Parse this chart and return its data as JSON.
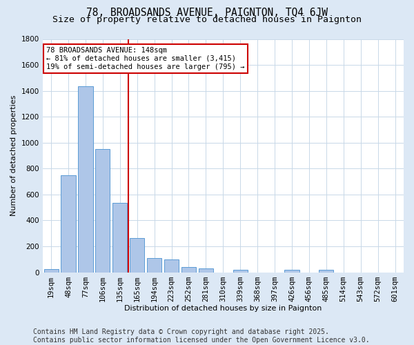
{
  "title1": "78, BROADSANDS AVENUE, PAIGNTON, TQ4 6JW",
  "title2": "Size of property relative to detached houses in Paignton",
  "xlabel": "Distribution of detached houses by size in Paignton",
  "ylabel": "Number of detached properties",
  "categories": [
    "19sqm",
    "48sqm",
    "77sqm",
    "106sqm",
    "135sqm",
    "165sqm",
    "194sqm",
    "223sqm",
    "252sqm",
    "281sqm",
    "310sqm",
    "339sqm",
    "368sqm",
    "397sqm",
    "426sqm",
    "456sqm",
    "485sqm",
    "514sqm",
    "543sqm",
    "572sqm",
    "601sqm"
  ],
  "values": [
    22,
    748,
    1435,
    950,
    535,
    265,
    110,
    100,
    42,
    28,
    0,
    18,
    0,
    0,
    18,
    0,
    18,
    0,
    0,
    0,
    0
  ],
  "bar_color": "#aec6e8",
  "bar_edge_color": "#5b9bd5",
  "vline_color": "#cc0000",
  "annotation_text": "78 BROADSANDS AVENUE: 148sqm\n← 81% of detached houses are smaller (3,415)\n19% of semi-detached houses are larger (795) →",
  "annotation_box_color": "#cc0000",
  "annotation_bg_color": "#ffffff",
  "ylim": [
    0,
    1800
  ],
  "yticks": [
    0,
    200,
    400,
    600,
    800,
    1000,
    1200,
    1400,
    1600,
    1800
  ],
  "footnote": "Contains HM Land Registry data © Crown copyright and database right 2025.\nContains public sector information licensed under the Open Government Licence v3.0.",
  "bg_color": "#dce8f5",
  "plot_bg_color": "#ffffff",
  "grid_color": "#c8d8e8",
  "title_fontsize": 10.5,
  "subtitle_fontsize": 9.5,
  "axis_fontsize": 8,
  "tick_fontsize": 7.5,
  "footnote_fontsize": 7
}
